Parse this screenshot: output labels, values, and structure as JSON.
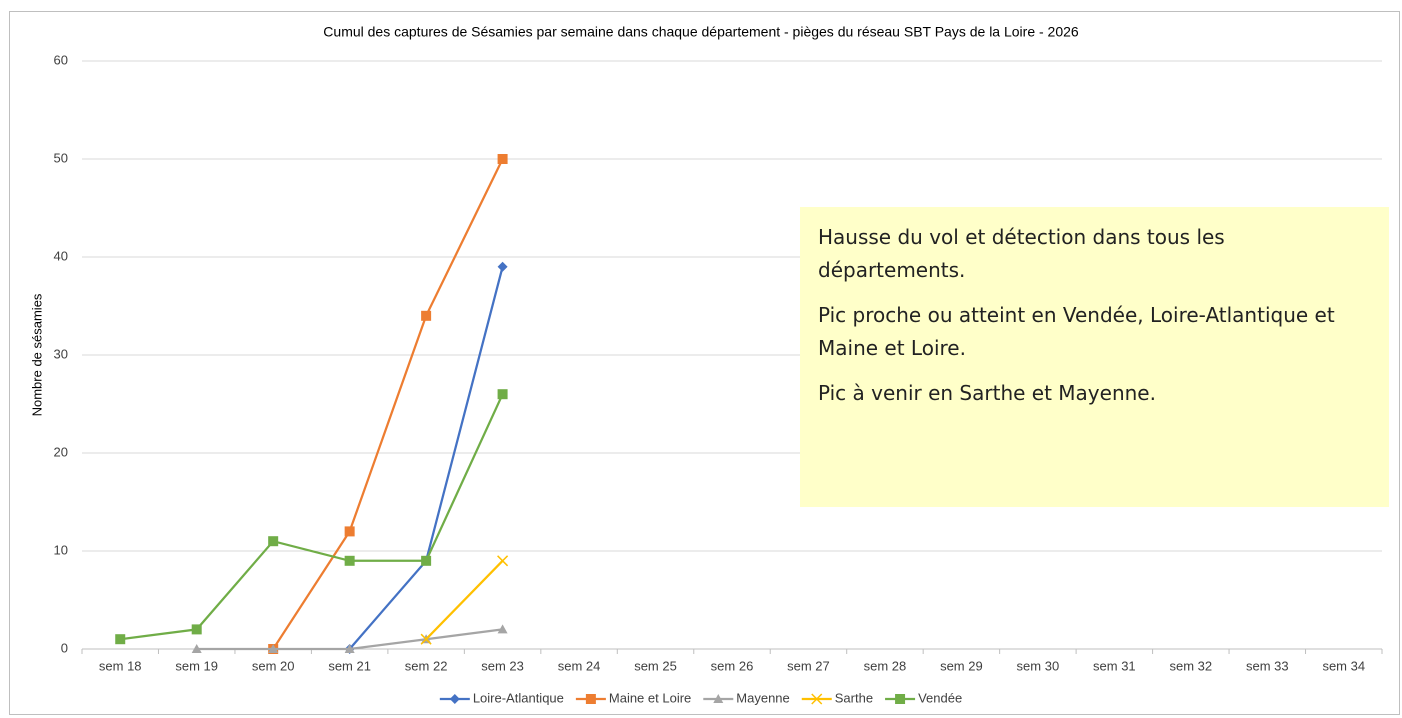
{
  "chart_data": {
    "type": "line",
    "title": "Cumul des captures de Sésamies par semaine dans chaque département - pièges du réseau SBT Pays de la Loire - 2026",
    "y_label": "Nombre de sésamies",
    "categories": [
      "sem 18",
      "sem 19",
      "sem 20",
      "sem 21",
      "sem 22",
      "sem 23",
      "sem 24",
      "sem 25",
      "sem 26",
      "sem 27",
      "sem 28",
      "sem 29",
      "sem 30",
      "sem 31",
      "sem 32",
      "sem 33",
      "sem 34"
    ],
    "series": [
      {
        "name": "Loire-Atlantique",
        "color": "#4472c4",
        "marker": "diamond",
        "values": [
          null,
          null,
          null,
          0,
          9,
          39,
          null,
          null,
          null,
          null,
          null,
          null,
          null,
          null,
          null,
          null,
          null
        ]
      },
      {
        "name": "Maine et Loire",
        "color": "#ed7d31",
        "marker": "square",
        "values": [
          null,
          null,
          0,
          12,
          34,
          50,
          null,
          null,
          null,
          null,
          null,
          null,
          null,
          null,
          null,
          null,
          null
        ]
      },
      {
        "name": "Mayenne",
        "color": "#a5a5a5",
        "marker": "triangle",
        "values": [
          null,
          0,
          0,
          0,
          1,
          2,
          null,
          null,
          null,
          null,
          null,
          null,
          null,
          null,
          null,
          null,
          null
        ]
      },
      {
        "name": "Sarthe",
        "color": "#ffc000",
        "marker": "x",
        "values": [
          null,
          null,
          null,
          null,
          1,
          9,
          null,
          null,
          null,
          null,
          null,
          null,
          null,
          null,
          null,
          null,
          null
        ]
      },
      {
        "name": "Vendée",
        "color": "#70ad47",
        "marker": "square",
        "values": [
          1,
          2,
          11,
          9,
          9,
          26,
          null,
          null,
          null,
          null,
          null,
          null,
          null,
          null,
          null,
          null,
          null
        ]
      }
    ],
    "ylim": [
      0,
      60
    ],
    "yticks": [
      0,
      10,
      20,
      30,
      40,
      50,
      60
    ],
    "grid": true,
    "legend": "bottom",
    "annotation": [
      "Hausse du vol et détection dans tous les départements.",
      "Pic proche ou atteint en Vendée, Loire-Atlantique et Maine et Loire.",
      "Pic à venir en Sarthe et Mayenne."
    ]
  }
}
